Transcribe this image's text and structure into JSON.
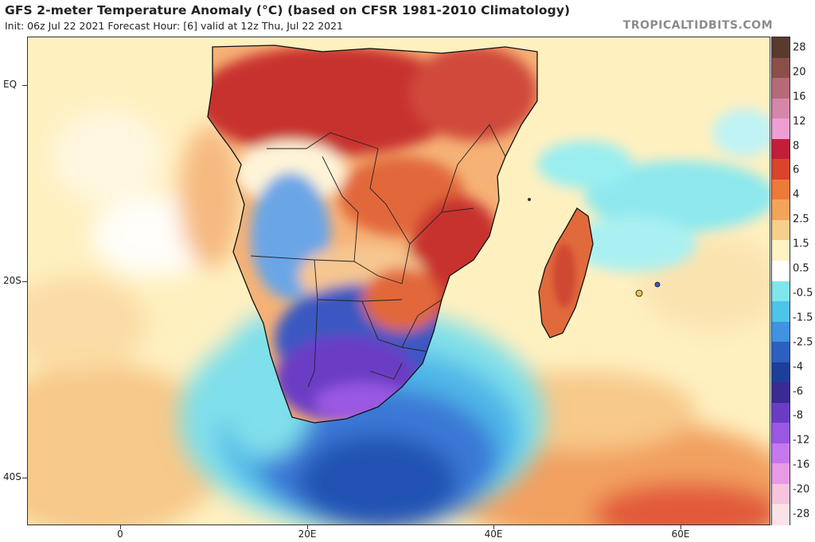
{
  "header": {
    "title": "GFS 2-meter Temperature Anomaly (°C) (based on CFSR 1981-2010 Climatology)",
    "subtitle": "Init: 06z Jul 22 2021   Forecast Hour: [6]   valid at 12z Thu, Jul 22 2021",
    "brand": "TROPICALTIDBITS.COM"
  },
  "axes": {
    "lat_labels": [
      "EQ",
      "20S",
      "40S"
    ],
    "lon_labels": [
      "0",
      "20E",
      "40E",
      "60E"
    ]
  },
  "colorbar": {
    "labels": [
      "28",
      "20",
      "16",
      "12",
      "8",
      "6",
      "4",
      "2.5",
      "1.5",
      "0.5",
      "-0.5",
      "-1.5",
      "-2.5",
      "-4",
      "-6",
      "-8",
      "-12",
      "-16",
      "-20",
      "-28"
    ],
    "colors": [
      "#5a3a2e",
      "#8a5048",
      "#b46a78",
      "#d487a8",
      "#ee9ed2",
      "#c21e3a",
      "#d8442c",
      "#ee7a3a",
      "#f4a45a",
      "#f7cf8c",
      "#fff3c4",
      "#ffffff",
      "#7fe6ec",
      "#4fc4ea",
      "#3f93e0",
      "#2c5fc0",
      "#1c3f9a",
      "#3a2a92",
      "#6a3cc4",
      "#9a58e2",
      "#c878ee",
      "#e89ae6",
      "#f6c4dc",
      "#fbe2e6"
    ]
  },
  "map": {
    "regions": [
      "Africa",
      "Madagascar",
      "Indian Ocean",
      "Atlantic Ocean"
    ]
  }
}
